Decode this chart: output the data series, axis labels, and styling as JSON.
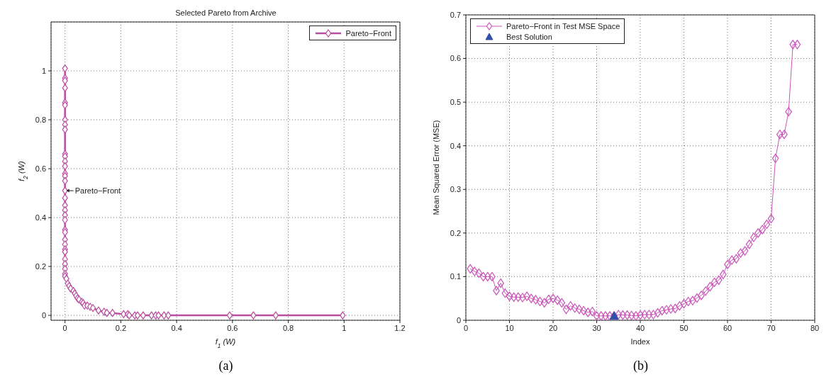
{
  "chart_data": [
    {
      "type": "line",
      "title": "Selected Pareto from Archive",
      "xlabel": "f$_{1}$(W)",
      "ylabel": "f$_{2}$(W)",
      "xlim": [
        -0.05,
        1.2
      ],
      "ylim": [
        -0.02,
        1.2
      ],
      "xticks": [
        0,
        0.2,
        0.4,
        0.6,
        0.8,
        1,
        1.2
      ],
      "yticks": [
        0,
        0.2,
        0.4,
        0.6,
        0.8,
        1
      ],
      "grid": true,
      "legend": "top right",
      "marker": "diamond",
      "line_style": "solid",
      "annotations": [
        {
          "text": "Pareto−Front",
          "x": 0,
          "y": 0.51
        },
        "(a)"
      ],
      "series": [
        {
          "name": "Pareto−Front",
          "color": "#b84ea0",
          "x": [
            0,
            0,
            0,
            0,
            0,
            0,
            0,
            0,
            0,
            0,
            0,
            0,
            0,
            0,
            0,
            0,
            0,
            0,
            0,
            0,
            0,
            0,
            0,
            0,
            0,
            0,
            0,
            0,
            0,
            0,
            0,
            0,
            0,
            0.005,
            0.01,
            0.015,
            0.02,
            0.03,
            0.035,
            0.04,
            0.045,
            0.05,
            0.06,
            0.065,
            0.07,
            0.08,
            0.09,
            0.1,
            0.12,
            0.14,
            0.15,
            0.17,
            0.21,
            0.225,
            0.23,
            0.25,
            0.26,
            0.28,
            0.31,
            0.325,
            0.335,
            0.355,
            0.37,
            0.59,
            0.675,
            0.755,
            0.995
          ],
          "values": [
            1.01,
            0.97,
            0.96,
            0.93,
            0.87,
            0.86,
            0.8,
            0.78,
            0.76,
            0.66,
            0.65,
            0.63,
            0.61,
            0.58,
            0.57,
            0.55,
            0.51,
            0.48,
            0.45,
            0.43,
            0.41,
            0.39,
            0.35,
            0.34,
            0.31,
            0.29,
            0.27,
            0.26,
            0.23,
            0.21,
            0.19,
            0.17,
            0.16,
            0.15,
            0.13,
            0.12,
            0.11,
            0.1,
            0.09,
            0.08,
            0.07,
            0.065,
            0.055,
            0.05,
            0.04,
            0.04,
            0.035,
            0.03,
            0.02,
            0.015,
            0.01,
            0.01,
            0.005,
            0.005,
            0,
            0,
            0,
            0,
            0,
            0,
            0,
            0,
            0,
            0,
            0,
            0,
            0
          ]
        }
      ]
    },
    {
      "type": "line",
      "xlabel": "Index",
      "ylabel": "Mean Squared Error (MSE)",
      "xlim": [
        0,
        80
      ],
      "ylim": [
        0,
        0.7
      ],
      "xticks": [
        0,
        10,
        20,
        30,
        40,
        50,
        60,
        70,
        80
      ],
      "yticks": [
        0,
        0.1,
        0.2,
        0.3,
        0.4,
        0.5,
        0.6,
        0.7
      ],
      "grid": true,
      "legend": "top left",
      "line_style": "solid",
      "annotations": [
        "(b)"
      ],
      "series": [
        {
          "name": "Pareto−Front in Test MSE Space",
          "color": "#cc55bb",
          "marker": "diamond",
          "x": [
            1,
            2,
            3,
            4,
            5,
            6,
            7,
            8,
            9,
            10,
            11,
            12,
            13,
            14,
            15,
            16,
            17,
            18,
            19,
            20,
            21,
            22,
            23,
            24,
            25,
            26,
            27,
            28,
            29,
            30,
            31,
            32,
            33,
            34,
            35,
            36,
            37,
            38,
            39,
            40,
            41,
            42,
            43,
            44,
            45,
            46,
            47,
            48,
            49,
            50,
            51,
            52,
            53,
            54,
            55,
            56,
            57,
            58,
            59,
            60,
            61,
            62,
            63,
            64,
            65,
            66,
            67,
            68,
            69,
            70,
            71,
            72,
            73,
            74,
            75,
            76
          ],
          "values": [
            0.118,
            0.112,
            0.108,
            0.1,
            0.1,
            0.1,
            0.068,
            0.085,
            0.062,
            0.055,
            0.053,
            0.053,
            0.052,
            0.055,
            0.05,
            0.047,
            0.043,
            0.04,
            0.048,
            0.05,
            0.046,
            0.04,
            0.025,
            0.033,
            0.028,
            0.025,
            0.022,
            0.018,
            0.02,
            0.01,
            0.01,
            0.01,
            0.01,
            0.01,
            0.013,
            0.012,
            0.012,
            0.011,
            0.01,
            0.012,
            0.013,
            0.013,
            0.013,
            0.017,
            0.022,
            0.024,
            0.026,
            0.027,
            0.033,
            0.038,
            0.043,
            0.045,
            0.051,
            0.057,
            0.067,
            0.077,
            0.087,
            0.092,
            0.105,
            0.128,
            0.138,
            0.141,
            0.154,
            0.159,
            0.174,
            0.19,
            0.2,
            0.208,
            0.22,
            0.233,
            0.371,
            0.426,
            0.426,
            0.478,
            0.632,
            0.632
          ]
        },
        {
          "name": "Best Solution",
          "type": "scatter",
          "color": "#2f4fa8",
          "marker": "triangle",
          "x": [
            34
          ],
          "values": [
            0.01
          ]
        }
      ]
    }
  ]
}
